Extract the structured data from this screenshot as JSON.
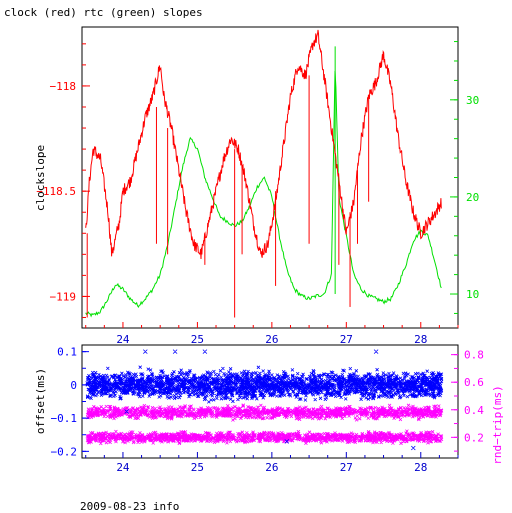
{
  "title": "clock (red) rtc (green) slopes",
  "footer": "2009-08-23 info",
  "colors": {
    "clock": "#ff0000",
    "rtc": "#00e000",
    "offset": "#0000ff",
    "rndtrip": "#ff00ff",
    "axis": "#000000"
  },
  "chart_data": [
    {
      "type": "line",
      "xlim": [
        23.45,
        28.5
      ],
      "x_ticks": [
        24,
        25,
        26,
        27,
        28
      ],
      "ylabel": "clockslope",
      "ylim_left": [
        -119.15,
        -117.72
      ],
      "yticks_left": [
        -118,
        -118.5,
        -119
      ],
      "ytick_labels_left": [
        "−118",
        "−118.5",
        "−119"
      ],
      "ylim_right": [
        6.5,
        37.5
      ],
      "yticks_right": [
        10,
        20,
        30
      ],
      "series": [
        {
          "axis": "left",
          "values": [
            [
              23.5,
              -118.7
            ],
            [
              23.55,
              -118.45
            ],
            [
              23.6,
              -118.3
            ],
            [
              23.7,
              -118.35
            ],
            [
              23.8,
              -118.6
            ],
            [
              23.85,
              -118.8
            ],
            [
              23.95,
              -118.65
            ],
            [
              24.0,
              -118.5
            ],
            [
              24.1,
              -118.45
            ],
            [
              24.2,
              -118.3
            ],
            [
              24.3,
              -118.15
            ],
            [
              24.4,
              -118.05
            ],
            [
              24.5,
              -117.9
            ],
            [
              24.55,
              -118.05
            ],
            [
              24.65,
              -118.2
            ],
            [
              24.75,
              -118.4
            ],
            [
              24.85,
              -118.6
            ],
            [
              24.95,
              -118.75
            ],
            [
              25.05,
              -118.8
            ],
            [
              25.15,
              -118.65
            ],
            [
              25.25,
              -118.5
            ],
            [
              25.35,
              -118.35
            ],
            [
              25.45,
              -118.25
            ],
            [
              25.55,
              -118.3
            ],
            [
              25.65,
              -118.45
            ],
            [
              25.75,
              -118.65
            ],
            [
              25.85,
              -118.8
            ],
            [
              25.95,
              -118.75
            ],
            [
              26.05,
              -118.55
            ],
            [
              26.15,
              -118.3
            ],
            [
              26.25,
              -118.05
            ],
            [
              26.35,
              -117.9
            ],
            [
              26.45,
              -117.95
            ],
            [
              26.55,
              -117.8
            ],
            [
              26.62,
              -117.76
            ],
            [
              26.7,
              -117.95
            ],
            [
              26.8,
              -118.2
            ],
            [
              26.9,
              -118.45
            ],
            [
              27.0,
              -118.7
            ],
            [
              27.1,
              -118.55
            ],
            [
              27.2,
              -118.25
            ],
            [
              27.3,
              -118.05
            ],
            [
              27.4,
              -117.98
            ],
            [
              27.5,
              -117.85
            ],
            [
              27.6,
              -118.0
            ],
            [
              27.7,
              -118.25
            ],
            [
              27.8,
              -118.45
            ],
            [
              27.9,
              -118.6
            ],
            [
              28.0,
              -118.7
            ],
            [
              28.1,
              -118.65
            ],
            [
              28.2,
              -118.6
            ],
            [
              28.28,
              -118.55
            ]
          ]
        },
        {
          "axis": "right",
          "values": [
            [
              23.5,
              8
            ],
            [
              23.6,
              7.8
            ],
            [
              23.7,
              8.2
            ],
            [
              23.8,
              9.5
            ],
            [
              23.9,
              11
            ],
            [
              24.0,
              10.5
            ],
            [
              24.1,
              9.5
            ],
            [
              24.2,
              8.8
            ],
            [
              24.3,
              9.5
            ],
            [
              24.4,
              10.5
            ],
            [
              24.5,
              12
            ],
            [
              24.6,
              15
            ],
            [
              24.7,
              19
            ],
            [
              24.8,
              23
            ],
            [
              24.9,
              26
            ],
            [
              25.0,
              25
            ],
            [
              25.1,
              22
            ],
            [
              25.2,
              20
            ],
            [
              25.3,
              18
            ],
            [
              25.4,
              17.5
            ],
            [
              25.5,
              17
            ],
            [
              25.6,
              17.5
            ],
            [
              25.7,
              19
            ],
            [
              25.8,
              21
            ],
            [
              25.9,
              22
            ],
            [
              26.0,
              20
            ],
            [
              26.1,
              16
            ],
            [
              26.2,
              12.5
            ],
            [
              26.3,
              10.5
            ],
            [
              26.4,
              9.8
            ],
            [
              26.5,
              9.5
            ],
            [
              26.6,
              9.8
            ],
            [
              26.7,
              10
            ],
            [
              26.8,
              12
            ],
            [
              26.85,
              34
            ],
            [
              26.9,
              20
            ],
            [
              27.0,
              16
            ],
            [
              27.1,
              12
            ],
            [
              27.2,
              10.5
            ],
            [
              27.3,
              9.8
            ],
            [
              27.4,
              9.5
            ],
            [
              27.5,
              9.2
            ],
            [
              27.6,
              9.5
            ],
            [
              27.7,
              11
            ],
            [
              27.8,
              13
            ],
            [
              27.9,
              15.5
            ],
            [
              28.0,
              16.5
            ],
            [
              28.1,
              16
            ],
            [
              28.2,
              13
            ],
            [
              28.28,
              10.5
            ]
          ]
        }
      ]
    },
    {
      "type": "scatter",
      "xlim": [
        23.45,
        28.5
      ],
      "x_ticks": [
        24,
        25,
        26,
        27,
        28
      ],
      "ylabel_left": "offset(ms)",
      "ylim_left": [
        -0.22,
        0.12
      ],
      "yticks_left": [
        0.1,
        0,
        -0.1,
        -0.2
      ],
      "ytick_labels_left": [
        "0.1",
        "0",
        "−0.1",
        "−0.2"
      ],
      "ylabel_right": "rnd−trip(ms)",
      "ylim_right": [
        0.05,
        0.87
      ],
      "yticks_right": [
        0.8,
        0.6,
        0.4,
        0.2
      ],
      "series": [
        {
          "axis": "left",
          "x_range": [
            23.52,
            28.28
          ],
          "center": 0.0,
          "spread": 0.055
        },
        {
          "axis": "right",
          "x_range": [
            23.52,
            28.28
          ],
          "bands": [
            [
              0.38,
              0.06
            ],
            [
              0.2,
              0.05
            ]
          ]
        }
      ]
    }
  ]
}
